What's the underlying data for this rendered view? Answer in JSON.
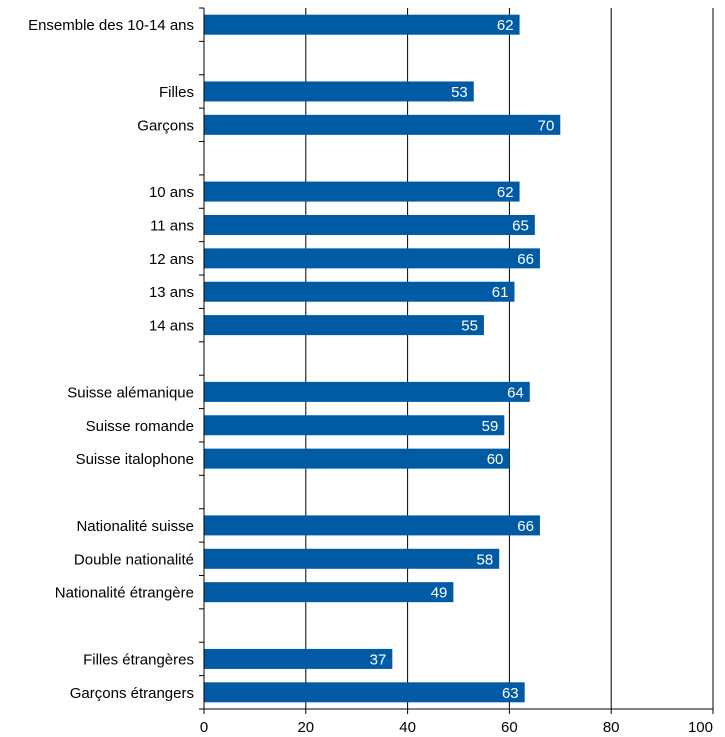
{
  "chart_data": {
    "type": "bar",
    "orientation": "horizontal",
    "title": "",
    "xlabel": "",
    "ylabel": "",
    "xlim": [
      0,
      100
    ],
    "x_ticks": [
      0,
      20,
      40,
      60,
      80,
      100
    ],
    "x_tick_labels": [
      "0",
      "20",
      "40",
      "60",
      "80",
      "100"
    ],
    "grid": "vertical gridlines",
    "legend": "none",
    "bar_color": "#005BA4",
    "value_label_color": "#FFFFFF",
    "rows": [
      {
        "label": "Ensemble des 10-14 ans",
        "value": 62
      },
      {
        "label": "",
        "value": null
      },
      {
        "label": "Filles",
        "value": 53
      },
      {
        "label": "Garçons",
        "value": 70
      },
      {
        "label": "",
        "value": null
      },
      {
        "label": "10 ans",
        "value": 62
      },
      {
        "label": "11 ans",
        "value": 65
      },
      {
        "label": "12 ans",
        "value": 66
      },
      {
        "label": "13 ans",
        "value": 61
      },
      {
        "label": "14 ans",
        "value": 55
      },
      {
        "label": "",
        "value": null
      },
      {
        "label": "Suisse alémanique",
        "value": 64
      },
      {
        "label": "Suisse romande",
        "value": 59
      },
      {
        "label": "Suisse italophone",
        "value": 60
      },
      {
        "label": "",
        "value": null
      },
      {
        "label": "Nationalité suisse",
        "value": 66
      },
      {
        "label": "Double nationalité",
        "value": 58
      },
      {
        "label": "Nationalité étrangère",
        "value": 49
      },
      {
        "label": "",
        "value": null
      },
      {
        "label": "Filles étrangères",
        "value": 37
      },
      {
        "label": "Garçons étrangers",
        "value": 63
      }
    ]
  }
}
